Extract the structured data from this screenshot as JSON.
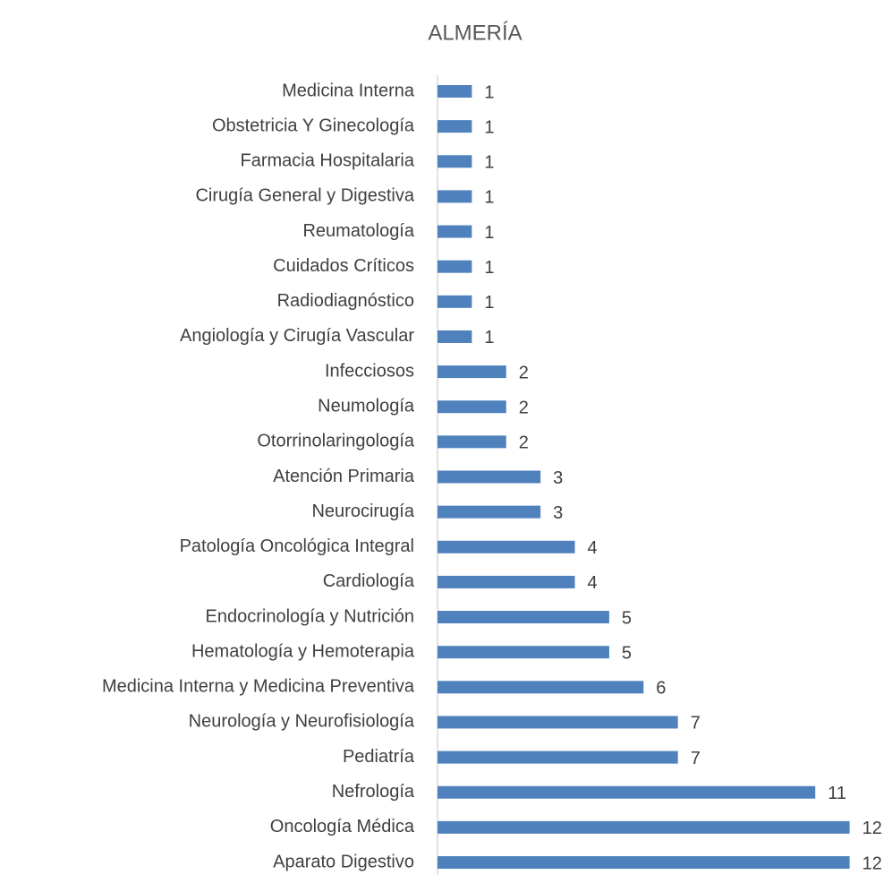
{
  "chart_data": {
    "type": "hbar",
    "title": "ALMERÍA",
    "categories": [
      "Medicina Interna",
      "Obstetricia Y Ginecología",
      "Farmacia Hospitalaria",
      "Cirugía General y Digestiva",
      "Reumatología",
      "Cuidados Críticos",
      "Radiodiagnóstico",
      "Angiología y Cirugía Vascular",
      "Infecciosos",
      "Neumología",
      "Otorrinolaringología",
      "Atención Primaria",
      "Neurocirugía",
      "Patología Oncológica Integral",
      "Cardiología",
      "Endocrinología y Nutrición",
      "Hematología y Hemoterapia",
      "Medicina Interna y Medicina Preventiva",
      "Neurología y Neurofisiología",
      "Pediatría",
      "Nefrología",
      "Oncología Médica",
      "Aparato Digestivo"
    ],
    "values": [
      1,
      1,
      1,
      1,
      1,
      1,
      1,
      1,
      2,
      2,
      2,
      3,
      3,
      4,
      4,
      5,
      5,
      6,
      7,
      7,
      11,
      12,
      12
    ],
    "color": "#4f81bd",
    "xlim": [
      0,
      13
    ]
  }
}
